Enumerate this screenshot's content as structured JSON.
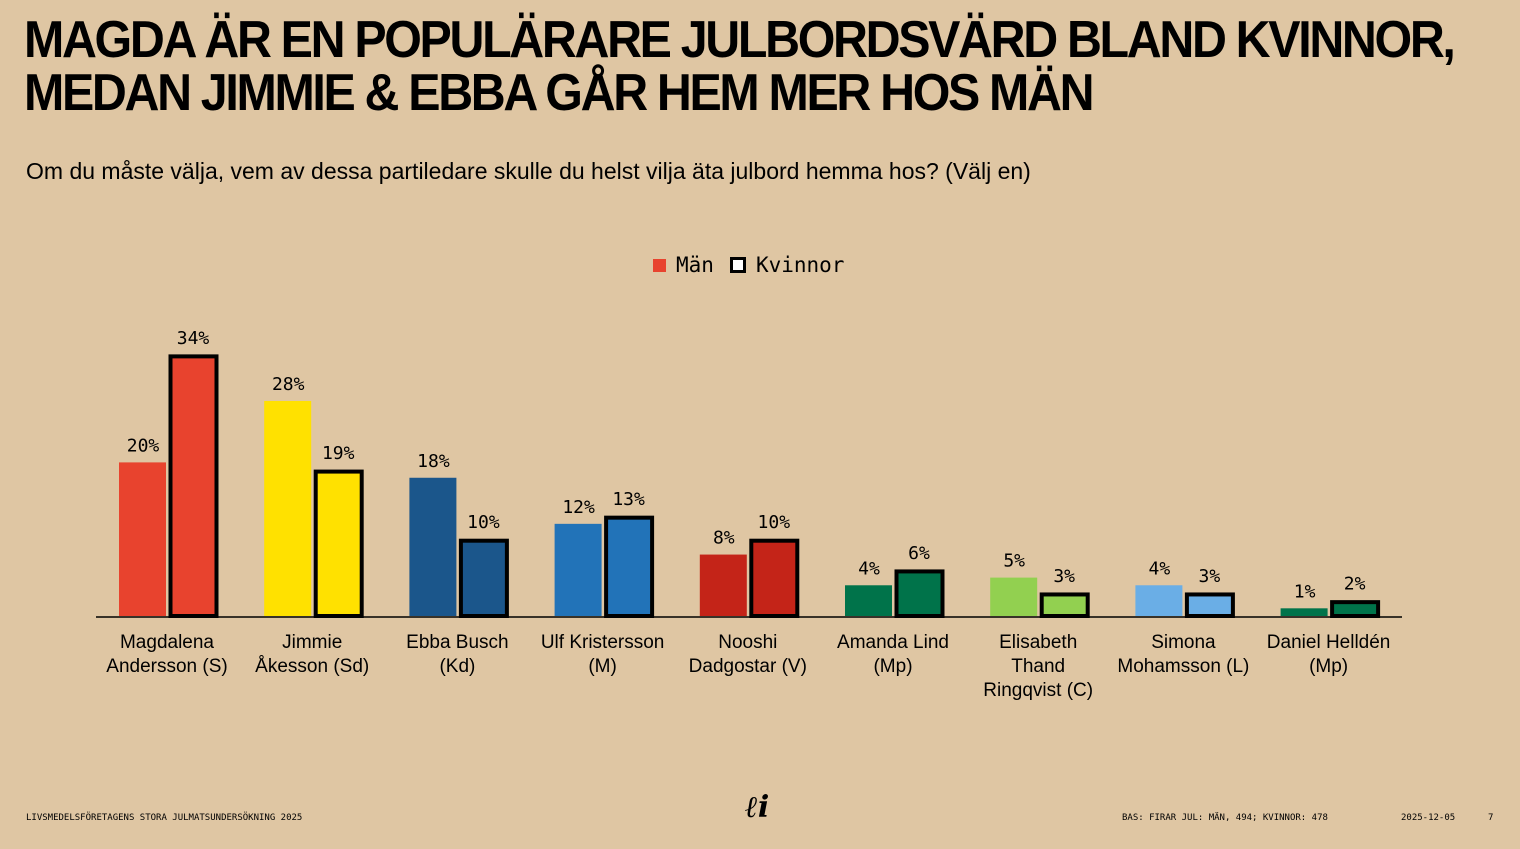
{
  "title_lines": [
    "MAGDA ÄR EN POPULÄRARE JULBORDSVÄRD BLAND KVINNOR,",
    "MEDAN JIMMIE & EBBA GÅR HEM MER HOS MÄN"
  ],
  "subtitle": "Om du måste välja, vem av dessa partiledare skulle du helst vilja äta julbord hemma hos? (Välj en)",
  "footer": {
    "left": "LIVSMEDELSFÖRETAGENS STORA JULMATSUNDERSÖKNING 2025",
    "logo": "li",
    "base": "BAS: FIRAR JUL: MÄN, 494; KVINNOR: 478",
    "date": "2025-12-05",
    "page": "7"
  },
  "chart_data": {
    "type": "bar",
    "title": "",
    "legend": {
      "position": "top-center",
      "entries": [
        "Män",
        "Kvinnor"
      ]
    },
    "categories": [
      [
        "Magdalena",
        "Andersson (S)"
      ],
      [
        "Jimmie",
        "Åkesson (Sd)"
      ],
      [
        "Ebba Busch",
        "(Kd)"
      ],
      [
        "Ulf Kristersson",
        "(M)"
      ],
      [
        "Nooshi",
        "Dadgostar (V)"
      ],
      [
        "Amanda Lind",
        "(Mp)"
      ],
      [
        "Elisabeth",
        "Thand",
        "Ringqvist (C)"
      ],
      [
        "Simona",
        "Mohamsson (L)"
      ],
      [
        "Daniel Helldén",
        "(Mp)"
      ]
    ],
    "colors": [
      "#e8432e",
      "#ffe100",
      "#1b568b",
      "#2273b8",
      "#c42418",
      "#00734a",
      "#92d050",
      "#6aaee6",
      "#00734a"
    ],
    "series": [
      {
        "name": "Män",
        "values": [
          20,
          28,
          18,
          12,
          8,
          4,
          5,
          4,
          1
        ],
        "labels": [
          "20%",
          "28%",
          "18%",
          "12%",
          "8%",
          "4%",
          "5%",
          "4%",
          "1%"
        ]
      },
      {
        "name": "Kvinnor",
        "values": [
          34,
          19,
          10,
          13,
          10,
          6,
          3,
          3,
          2
        ],
        "labels": [
          "34%",
          "19%",
          "10%",
          "13%",
          "10%",
          "6%",
          "3%",
          "3%",
          "2%"
        ]
      }
    ],
    "ylim": [
      0,
      36
    ],
    "grid": false
  }
}
